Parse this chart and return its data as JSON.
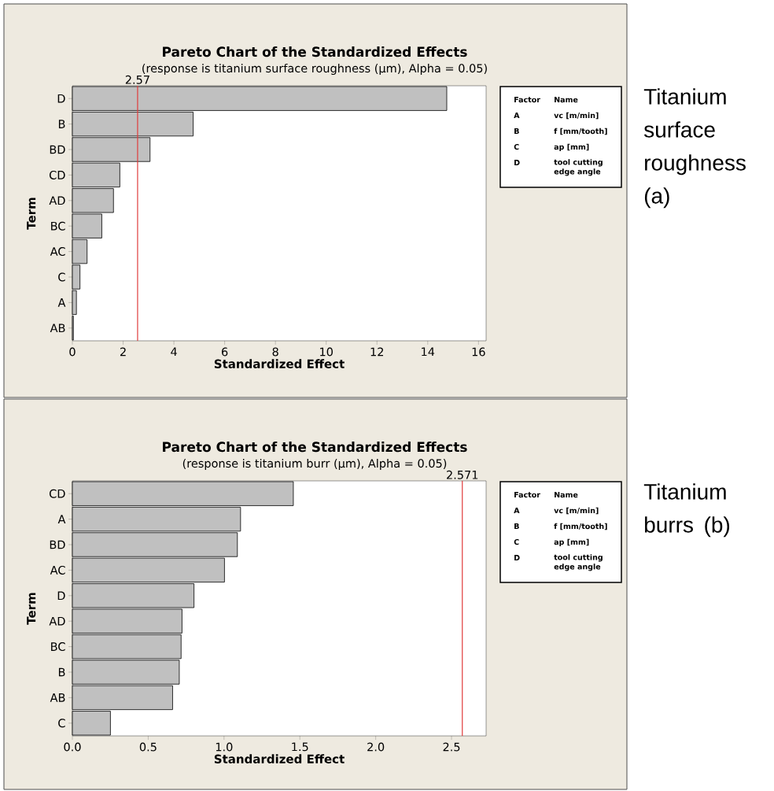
{
  "chart_data": [
    {
      "type": "bar",
      "orientation": "horizontal",
      "title": "Pareto Chart of the Standardized Effects",
      "subtitle": "(response is titanium surface roughness (µm), Alpha = 0.05)",
      "xlabel": "Standardized Effect",
      "ylabel": "Term",
      "categories": [
        "D",
        "B",
        "BD",
        "CD",
        "AD",
        "BC",
        "AC",
        "C",
        "A",
        "AB"
      ],
      "values": [
        14.75,
        4.76,
        3.06,
        1.87,
        1.62,
        1.16,
        0.58,
        0.3,
        0.16,
        0.04
      ],
      "color": "#c0c0c0",
      "xlim": [
        0,
        16.3
      ],
      "xticks": [
        0,
        2,
        4,
        6,
        8,
        10,
        12,
        14,
        16
      ],
      "ref_lines": [
        {
          "axis": "x",
          "value": 2.57,
          "label": "2.57",
          "color": "#e03c3c"
        }
      ],
      "annotations": [
        "Factor",
        "Name",
        "A",
        "vc [m/min]",
        "B",
        "f [mm/tooth]",
        "C",
        "ap [mm]",
        "D",
        "tool cutting edge angle",
        "Titanium surface roughness (a)"
      ]
    },
    {
      "type": "bar",
      "orientation": "horizontal",
      "title": "Pareto Chart of the Standardized Effects",
      "subtitle": "(response is titanium burr (µm), Alpha = 0.05)",
      "xlabel": "Standardized Effect",
      "ylabel": "Term",
      "categories": [
        "CD",
        "A",
        "BD",
        "AC",
        "D",
        "AD",
        "BC",
        "B",
        "AB",
        "C"
      ],
      "values": [
        1.457,
        1.109,
        1.088,
        1.003,
        0.802,
        0.723,
        0.717,
        0.705,
        0.661,
        0.251
      ],
      "color": "#c0c0c0",
      "xlim": [
        0,
        2.728
      ],
      "xticks": [
        {
          "value": 0,
          "label": "0.0"
        },
        {
          "value": 0.5,
          "label": "0.5"
        },
        {
          "value": 1,
          "label": "1.0"
        },
        {
          "value": 1.5,
          "label": "1.5"
        },
        {
          "value": 2,
          "label": "2.0"
        },
        {
          "value": 2.5,
          "label": "2.5"
        }
      ],
      "ref_lines": [
        {
          "axis": "x",
          "value": 2.571,
          "label": "2.571",
          "color": "#e03c3c"
        }
      ],
      "annotations": [
        "Factor",
        "Name",
        "A",
        "vc [m/min]",
        "B",
        "f [mm/tooth]",
        "C",
        "ap [mm]",
        "D",
        "tool cutting edge angle",
        "Titanium burrs (b)"
      ]
    }
  ]
}
